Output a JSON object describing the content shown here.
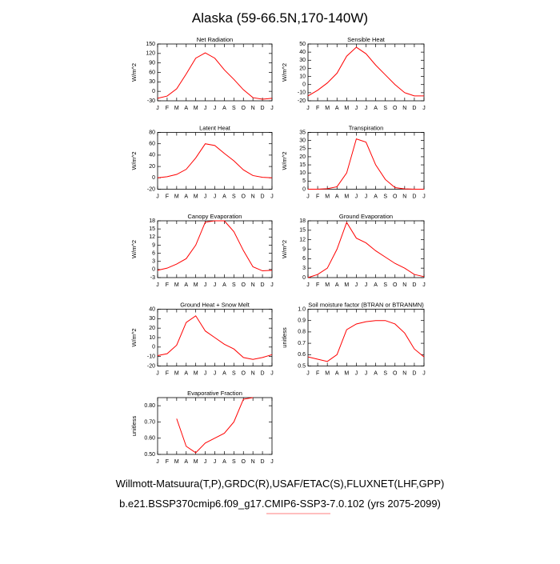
{
  "title": "Alaska (59-66.5N,170-140W)",
  "footer": [
    "Willmott-Matsuura(T,P),GRDC(R),USAF/ETAC(S),FLUXNET(LHF,GPP)",
    "b.e21.BSSP370cmip6.f09_g17.CMIP6-SSP3-7.0.102 (yrs 2075-2099)"
  ],
  "chart_data": [
    {
      "type": "line",
      "title": "Net Radiation",
      "y_label": "W/m^2",
      "color": "#ff0000",
      "categories": [
        "J",
        "F",
        "M",
        "A",
        "M",
        "J",
        "J",
        "A",
        "S",
        "O",
        "N",
        "D",
        "J"
      ],
      "values": [
        -22,
        -15,
        8,
        55,
        105,
        122,
        105,
        68,
        38,
        5,
        -20,
        -25,
        -22
      ],
      "ylim": [
        -30,
        150
      ],
      "yticks": [
        -30,
        0,
        30,
        60,
        90,
        120,
        150
      ]
    },
    {
      "type": "line",
      "title": "Sensible Heat",
      "y_label": "W/m^2",
      "color": "#ff0000",
      "categories": [
        "J",
        "F",
        "M",
        "A",
        "M",
        "J",
        "J",
        "A",
        "S",
        "O",
        "N",
        "D",
        "J"
      ],
      "values": [
        -14,
        -7,
        2,
        14,
        35,
        46,
        38,
        24,
        12,
        0,
        -10,
        -14,
        -14
      ],
      "ylim": [
        -20,
        50
      ],
      "yticks": [
        -20,
        -10,
        0,
        10,
        20,
        30,
        40,
        50
      ]
    },
    {
      "type": "line",
      "title": "Latent Heat",
      "y_label": "W/m^2",
      "color": "#ff0000",
      "categories": [
        "J",
        "F",
        "M",
        "A",
        "M",
        "J",
        "J",
        "A",
        "S",
        "O",
        "N",
        "D",
        "J"
      ],
      "values": [
        0,
        2,
        6,
        15,
        35,
        60,
        57,
        43,
        30,
        14,
        4,
        1,
        0
      ],
      "ylim": [
        -20,
        80
      ],
      "yticks": [
        -20,
        0,
        20,
        40,
        60,
        80
      ]
    },
    {
      "type": "line",
      "title": "Transpiration",
      "y_label": "W/m^2",
      "color": "#ff0000",
      "categories": [
        "J",
        "F",
        "M",
        "A",
        "M",
        "J",
        "J",
        "A",
        "S",
        "O",
        "N",
        "D",
        "J"
      ],
      "values": [
        0,
        0,
        0.3,
        1.5,
        10,
        31,
        29,
        15,
        6,
        1,
        0.2,
        0,
        0
      ],
      "ylim": [
        0,
        35
      ],
      "yticks": [
        0,
        5,
        10,
        15,
        20,
        25,
        30,
        35
      ]
    },
    {
      "type": "line",
      "title": "Canopy Evaporation",
      "y_label": "W/m^2",
      "color": "#ff0000",
      "categories": [
        "J",
        "F",
        "M",
        "A",
        "M",
        "J",
        "J",
        "A",
        "S",
        "O",
        "N",
        "D",
        "J"
      ],
      "values": [
        -0.3,
        0.5,
        2,
        4,
        9,
        17.5,
        18,
        18,
        14,
        7,
        1,
        -0.5,
        -0.3
      ],
      "ylim": [
        -3,
        18
      ],
      "yticks": [
        -3,
        0,
        3,
        6,
        9,
        12,
        15,
        18
      ]
    },
    {
      "type": "line",
      "title": "Ground Evaporation",
      "y_label": "W/m^2",
      "color": "#ff0000",
      "categories": [
        "J",
        "F",
        "M",
        "A",
        "M",
        "J",
        "J",
        "A",
        "S",
        "O",
        "N",
        "D",
        "J"
      ],
      "values": [
        0,
        1,
        3,
        9,
        17.5,
        12.5,
        11,
        8.5,
        6.5,
        4.5,
        3,
        1,
        0.3
      ],
      "ylim": [
        0,
        18
      ],
      "yticks": [
        0,
        3,
        6,
        9,
        12,
        15,
        18
      ]
    },
    {
      "type": "line",
      "title": "Ground Heat + Snow Melt",
      "y_label": "W/m^2",
      "color": "#ff0000",
      "categories": [
        "J",
        "F",
        "M",
        "A",
        "M",
        "J",
        "J",
        "A",
        "S",
        "O",
        "N",
        "D",
        "J"
      ],
      "values": [
        -9,
        -7,
        2,
        26,
        33,
        17,
        10,
        3,
        -2,
        -11,
        -13,
        -11,
        -8
      ],
      "ylim": [
        -20,
        40
      ],
      "yticks": [
        -20,
        -10,
        0,
        10,
        20,
        30,
        40
      ]
    },
    {
      "type": "line",
      "title": "Soil moisture factor (BTRAN or BTRANMN)",
      "y_label": "unitless",
      "color": "#ff0000",
      "categories": [
        "J",
        "F",
        "M",
        "A",
        "M",
        "J",
        "J",
        "A",
        "S",
        "O",
        "N",
        "D",
        "J"
      ],
      "values": [
        0.58,
        0.56,
        0.54,
        0.6,
        0.82,
        0.87,
        0.89,
        0.9,
        0.9,
        0.87,
        0.79,
        0.65,
        0.58
      ],
      "ylim": [
        0.5,
        1
      ],
      "yticks": [
        0.5,
        0.6,
        0.7,
        0.8,
        0.9,
        {
          "value": 1,
          "label": "1.0"
        }
      ]
    },
    {
      "type": "line",
      "title": "Evaporative Fraction",
      "y_label": "unitless",
      "color": "#ff0000",
      "categories": [
        "J",
        "F",
        "M",
        "A",
        "M",
        "J",
        "J",
        "A",
        "S",
        "O",
        "N",
        "D",
        "J"
      ],
      "values": [
        null,
        null,
        0.72,
        0.55,
        0.51,
        0.57,
        0.6,
        0.63,
        0.7,
        0.84,
        0.85,
        null,
        null
      ],
      "ylim": [
        0.5,
        0.85
      ],
      "yticks": [
        {
          "value": 0.5,
          "label": "0.50"
        },
        {
          "value": 0.6,
          "label": "0.60"
        },
        {
          "value": 0.7,
          "label": "0.70"
        },
        {
          "value": 0.8,
          "label": "0.80"
        }
      ]
    }
  ]
}
